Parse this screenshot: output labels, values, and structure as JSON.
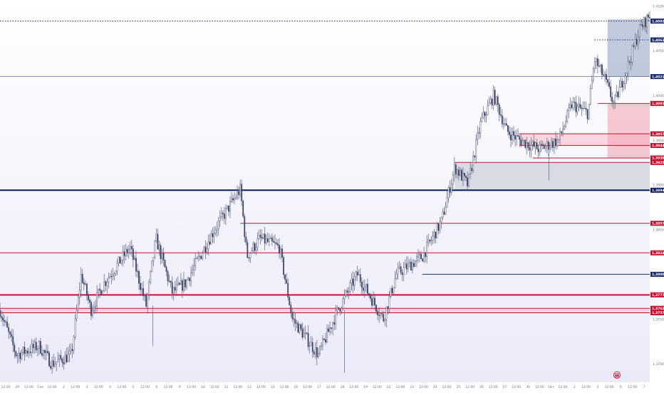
{
  "chart_data": {
    "type": "line",
    "subtype": "candlestick",
    "ylim": [
      1.3685,
      1.4105
    ],
    "price_ticks": [
      "1.4100",
      "1.4050",
      "1.4000",
      "1.3950",
      "1.3900",
      "1.3850",
      "1.3800",
      "1.3750",
      "1.3700"
    ],
    "x_labels": [
      "12:00",
      "29",
      "12:00",
      "Сен",
      "12:00",
      "2",
      "12:00",
      "3",
      "12:00",
      "4",
      "12:00",
      "5",
      "12:00",
      "6",
      "12:00",
      "9",
      "12:00",
      "10",
      "12:00",
      "11",
      "12:00",
      "12",
      "12:00",
      "13",
      "12:00",
      "16",
      "12:00",
      "17",
      "12:00",
      "18",
      "12:00",
      "19",
      "12:00",
      "22",
      "12:00",
      "23",
      "12:00",
      "24",
      "12:00",
      "25",
      "12:00",
      "26",
      "12:00",
      "27",
      "12:00",
      "30",
      "12:00",
      "Окт",
      "12:00",
      "2",
      "12:00",
      "3",
      "12:00",
      "6",
      "12:00",
      "7"
    ],
    "levels": [
      {
        "price": 1.4083,
        "label": "1,4083",
        "color": "#1e2a6e",
        "style": "dotted",
        "start": 0.0
      },
      {
        "price": 1.4062,
        "label": "1,4062",
        "color": "#1e2a6e",
        "style": "dotted",
        "start": 0.915
      },
      {
        "price": 1.4021,
        "label": "1,4021",
        "color": "#1e2a6e",
        "style": "solid",
        "start": 0.0,
        "thin": true
      },
      {
        "price": 1.3991,
        "label": "1,3991",
        "color": "#c8102e",
        "style": "solid",
        "start": 0.92
      },
      {
        "price": 1.3957,
        "label": "1,3957",
        "color": "#c8102e",
        "style": "solid",
        "start": 0.8
      },
      {
        "price": 1.3944,
        "label": "1,3944",
        "color": "#c8102e",
        "style": "solid",
        "start": 0.8
      },
      {
        "price": 1.393,
        "label": "1,3930",
        "color": "#c8102e",
        "style": "solid",
        "start": 0.82
      },
      {
        "price": 1.3925,
        "label": "1,3925",
        "color": "#c8102e",
        "style": "solid",
        "start": 0.7
      },
      {
        "price": 1.3894,
        "label": "1,3894",
        "color": "#0b1a5c",
        "style": "bold",
        "start": 0.0
      },
      {
        "price": 1.3857,
        "label": "1,3857",
        "color": "#c8102e",
        "style": "solid",
        "start": 0.37
      },
      {
        "price": 1.3824,
        "label": "1,3824",
        "color": "#c8102e",
        "style": "solid",
        "start": 0.0
      },
      {
        "price": 1.38,
        "label": "1,3800",
        "color": "#1e2a6e",
        "style": "solid",
        "start": 0.65
      },
      {
        "price": 1.3777,
        "label": "1,3777",
        "color": "#c8102e",
        "style": "bold",
        "start": 0.0
      },
      {
        "price": 1.3762,
        "label": "1,3762",
        "color": "#c8102e",
        "style": "solid",
        "start": 0.0
      },
      {
        "price": 1.3757,
        "label": "1,3757",
        "color": "#c8102e",
        "style": "solid",
        "start": 0.0
      }
    ],
    "zones": [
      {
        "x0": 0.935,
        "x1": 1.0,
        "y0": 1.4085,
        "y1": 1.4021,
        "color": "#8f9fbf",
        "opacity": 0.55
      },
      {
        "x0": 0.935,
        "x1": 1.0,
        "y0": 1.3991,
        "y1": 1.393,
        "color": "#f4a7b5",
        "opacity": 0.6
      },
      {
        "x0": 0.8,
        "x1": 1.0,
        "y0": 1.3957,
        "y1": 1.3944,
        "color": "#f4a7b5",
        "opacity": 0.4
      },
      {
        "x0": 0.7,
        "x1": 1.0,
        "y0": 1.3925,
        "y1": 1.3894,
        "color": "#b5bac8",
        "opacity": 0.45
      },
      {
        "x0": 0.0,
        "x1": 1.0,
        "y0": 1.3762,
        "y1": 1.3757,
        "color": "#f4a7b5",
        "opacity": 0.4
      }
    ],
    "path_anchors": [
      [
        0.0,
        1.376
      ],
      [
        0.025,
        1.371
      ],
      [
        0.06,
        1.372
      ],
      [
        0.08,
        1.37
      ],
      [
        0.11,
        1.371
      ],
      [
        0.125,
        1.38
      ],
      [
        0.14,
        1.376
      ],
      [
        0.16,
        1.379
      ],
      [
        0.2,
        1.383
      ],
      [
        0.225,
        1.3765
      ],
      [
        0.24,
        1.384
      ],
      [
        0.265,
        1.378
      ],
      [
        0.285,
        1.379
      ],
      [
        0.33,
        1.385
      ],
      [
        0.37,
        1.3895
      ],
      [
        0.38,
        1.382
      ],
      [
        0.4,
        1.384
      ],
      [
        0.43,
        1.383
      ],
      [
        0.45,
        1.375
      ],
      [
        0.49,
        1.371
      ],
      [
        0.52,
        1.376
      ],
      [
        0.55,
        1.38
      ],
      [
        0.59,
        1.375
      ],
      [
        0.61,
        1.38
      ],
      [
        0.65,
        1.382
      ],
      [
        0.68,
        1.386
      ],
      [
        0.7,
        1.392
      ],
      [
        0.72,
        1.39
      ],
      [
        0.74,
        1.397
      ],
      [
        0.76,
        1.4
      ],
      [
        0.78,
        1.396
      ],
      [
        0.8,
        1.395
      ],
      [
        0.83,
        1.394
      ],
      [
        0.86,
        1.395
      ],
      [
        0.88,
        1.399
      ],
      [
        0.905,
        1.398
      ],
      [
        0.915,
        1.404
      ],
      [
        0.93,
        1.402
      ],
      [
        0.945,
        1.399
      ],
      [
        0.965,
        1.403
      ],
      [
        0.985,
        1.4075
      ],
      [
        1.0,
        1.409
      ]
    ],
    "watermark_icon": "tradingview-flag-icon"
  }
}
